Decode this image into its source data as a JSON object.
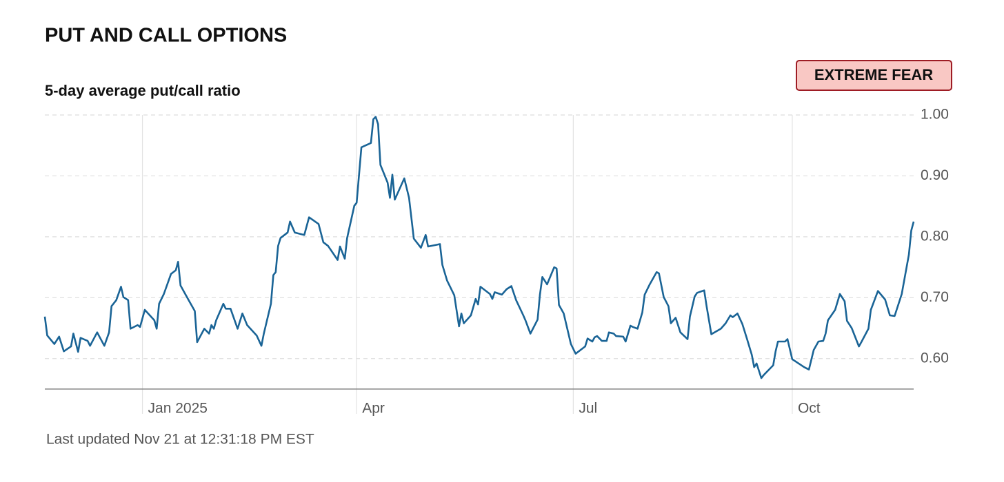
{
  "chart_data": {
    "type": "line",
    "title": "PUT AND CALL OPTIONS",
    "subtitle": "5-day average put/call ratio",
    "indicator": "EXTREME FEAR",
    "footnote": "Last updated Nov 21 at 12:31:18 PM EST",
    "color": "#1a6496",
    "x": [
      -41,
      -40,
      -37,
      -35,
      -33,
      -30,
      -29,
      -27,
      -26,
      -23,
      -22,
      -19,
      -16,
      -14,
      -13,
      -11,
      -9,
      -8,
      -6,
      -5,
      -2,
      -1,
      1,
      5,
      6,
      7,
      9,
      12,
      14,
      15,
      16,
      19,
      22,
      23,
      26,
      28,
      29,
      30,
      31,
      34,
      35,
      37,
      40,
      42,
      44,
      48,
      50,
      51,
      54,
      55,
      56,
      57,
      58,
      61,
      62,
      64,
      68,
      70,
      74,
      76,
      78,
      82,
      83,
      85,
      86,
      89,
      90,
      92,
      96,
      97,
      98,
      99,
      100,
      103,
      104,
      105,
      106,
      110,
      112,
      114,
      117,
      119,
      120,
      125,
      126,
      128,
      131,
      133,
      134,
      135,
      138,
      140,
      141,
      142,
      146,
      147,
      148,
      151,
      153,
      155,
      157,
      160,
      161,
      163,
      166,
      167,
      168,
      170,
      173,
      174,
      175,
      177,
      180,
      182,
      186,
      187,
      189,
      190,
      191,
      193,
      195,
      196,
      198,
      199,
      202,
      203,
      205,
      206,
      208,
      210,
      211,
      213,
      216,
      217,
      219,
      221,
      222,
      224,
      226,
      229,
      230,
      232,
      233,
      236,
      237,
      239,
      243,
      245,
      247,
      248,
      250,
      252,
      254,
      256,
      257,
      258,
      260,
      261,
      264,
      265,
      266,
      267,
      270,
      271,
      273,
      278,
      280,
      282,
      284,
      286,
      287,
      288,
      291,
      293,
      295,
      296,
      298,
      301,
      302,
      305,
      306,
      309,
      312,
      314,
      316,
      319,
      322,
      323,
      324
    ],
    "values": [
      0.669,
      0.638,
      0.624,
      0.636,
      0.612,
      0.62,
      0.641,
      0.611,
      0.634,
      0.629,
      0.621,
      0.643,
      0.621,
      0.643,
      0.686,
      0.696,
      0.718,
      0.701,
      0.696,
      0.649,
      0.655,
      0.652,
      0.68,
      0.663,
      0.649,
      0.69,
      0.706,
      0.739,
      0.745,
      0.759,
      0.72,
      0.699,
      0.678,
      0.627,
      0.649,
      0.641,
      0.655,
      0.649,
      0.663,
      0.69,
      0.682,
      0.682,
      0.649,
      0.674,
      0.655,
      0.638,
      0.621,
      0.641,
      0.69,
      0.737,
      0.742,
      0.785,
      0.798,
      0.807,
      0.825,
      0.807,
      0.803,
      0.832,
      0.821,
      0.791,
      0.785,
      0.762,
      0.784,
      0.764,
      0.798,
      0.851,
      0.856,
      0.947,
      0.954,
      0.993,
      0.997,
      0.985,
      0.918,
      0.889,
      0.864,
      0.902,
      0.861,
      0.896,
      0.864,
      0.797,
      0.782,
      0.803,
      0.784,
      0.788,
      0.754,
      0.728,
      0.704,
      0.653,
      0.674,
      0.658,
      0.671,
      0.698,
      0.689,
      0.718,
      0.706,
      0.698,
      0.709,
      0.705,
      0.714,
      0.719,
      0.696,
      0.671,
      0.662,
      0.641,
      0.664,
      0.705,
      0.734,
      0.722,
      0.75,
      0.748,
      0.688,
      0.674,
      0.624,
      0.608,
      0.62,
      0.633,
      0.628,
      0.635,
      0.637,
      0.629,
      0.629,
      0.643,
      0.641,
      0.637,
      0.636,
      0.628,
      0.654,
      0.652,
      0.649,
      0.676,
      0.705,
      0.721,
      0.742,
      0.74,
      0.701,
      0.686,
      0.658,
      0.667,
      0.643,
      0.632,
      0.669,
      0.702,
      0.708,
      0.712,
      0.686,
      0.64,
      0.649,
      0.658,
      0.671,
      0.668,
      0.674,
      0.657,
      0.632,
      0.606,
      0.586,
      0.592,
      0.568,
      0.573,
      0.585,
      0.589,
      0.612,
      0.628,
      0.628,
      0.632,
      0.599,
      0.586,
      0.582,
      0.614,
      0.628,
      0.629,
      0.641,
      0.663,
      0.68,
      0.706,
      0.694,
      0.662,
      0.65,
      0.62,
      0.627,
      0.649,
      0.68,
      0.711,
      0.697,
      0.671,
      0.67,
      0.706,
      0.771,
      0.81,
      0.825
    ],
    "xlim": [
      -41,
      324
    ],
    "xticks": [
      {
        "value": 0,
        "label": "Jan 2025"
      },
      {
        "value": 90,
        "label": "Apr"
      },
      {
        "value": 181,
        "label": "Jul"
      },
      {
        "value": 273,
        "label": "Oct"
      }
    ],
    "ylim": [
      0.55,
      1.0
    ],
    "yticks": [
      {
        "value": 0.6,
        "label": "0.60"
      },
      {
        "value": 0.7,
        "label": "0.70"
      },
      {
        "value": 0.8,
        "label": "0.80"
      },
      {
        "value": 0.9,
        "label": "0.90"
      },
      {
        "value": 1.0,
        "label": "1.00"
      }
    ],
    "grid": true
  }
}
